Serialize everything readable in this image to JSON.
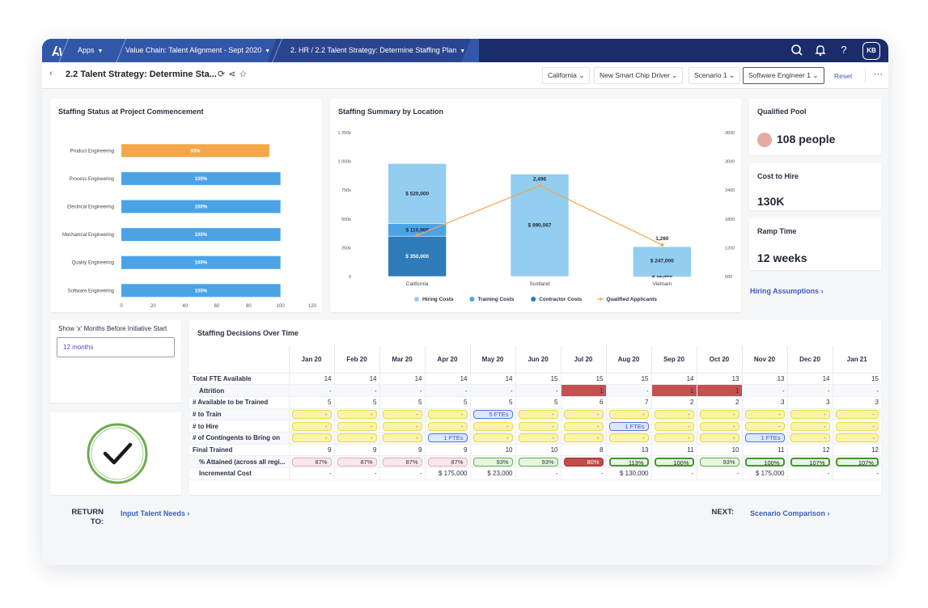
{
  "nav": {
    "apps": "Apps",
    "breadcrumb1": "Value Chain: Talent Alignment - Sept 2020",
    "breadcrumb2": "2. HR / 2.2 Talent Strategy: Determine Staffing Plan",
    "avatar": "KB"
  },
  "header": {
    "title": "2.2 Talent Strategy: Determine Sta...",
    "filters": [
      "California",
      "New Smart Chip Driver",
      "Scenario 1",
      "Software Engineer 1"
    ],
    "reset": "Reset"
  },
  "status_chart": {
    "title": "Staffing Status at Project Commencement",
    "chart_data": {
      "type": "bar",
      "orientation": "horizontal",
      "categories": [
        "Product Engineering",
        "Process Engineering",
        "Electrical Engineering",
        "Mechanical Engineering",
        "Quality Engineering",
        "Software Engineering"
      ],
      "values": [
        93,
        100,
        100,
        100,
        100,
        100
      ],
      "value_labels": [
        "93%",
        "100%",
        "100%",
        "100%",
        "100%",
        "100%"
      ],
      "bar_colors": [
        "#f4a74a",
        "#4ba3e6",
        "#4ba3e6",
        "#4ba3e6",
        "#4ba3e6",
        "#4ba3e6"
      ],
      "xlim": [
        0,
        120
      ],
      "xticks": [
        "0",
        "20",
        "40",
        "60",
        "80",
        "100",
        "120"
      ]
    }
  },
  "summary_chart": {
    "title": "Staffing Summary by Location",
    "chart_data": {
      "type": "bar",
      "stacked": true,
      "categories": [
        "California",
        "Scotland",
        "Vietnam"
      ],
      "series": [
        {
          "name": "Hiring Costs",
          "color": "#93cdef",
          "values": [
            520000,
            890067,
            247000
          ],
          "labels": [
            "$ 520,000",
            "$ 890,067",
            "$ 247,000"
          ]
        },
        {
          "name": "Training Costs",
          "color": "#4ba3e6",
          "values": [
            110900,
            0,
            12500
          ],
          "labels": [
            "$ 110,900",
            "",
            "$ 12,500"
          ]
        },
        {
          "name": "Contractor Costs",
          "color": "#2d7bb8",
          "values": [
            350000,
            0,
            0
          ],
          "labels": [
            "$ 350,000",
            "",
            ""
          ]
        },
        {
          "name": "Qualified Applicants",
          "type": "line",
          "color": "#f4a74a",
          "axis": "right",
          "values": [
            1460,
            2496,
            1260
          ],
          "labels": [
            "",
            "2,496",
            "1,260"
          ]
        }
      ],
      "ylim": [
        0,
        1250000
      ],
      "y_ticks": [
        "0",
        "250k",
        "500k",
        "750k",
        "1 000k",
        "1 250k"
      ],
      "y2lim": [
        600,
        3600
      ],
      "y2_ticks": [
        "600",
        "1200",
        "1800",
        "2400",
        "3000",
        "3600"
      ]
    }
  },
  "kpis": {
    "pool_title": "Qualified Pool",
    "pool_value": "108 people",
    "cost_title": "Cost to Hire",
    "cost_value": "130K",
    "ramp_title": "Ramp Time",
    "ramp_value": "12 weeks",
    "assumptions_link": "Hiring Assumptions"
  },
  "months_panel": {
    "label": "Show 'x' Months Before Initiative Start",
    "value": "12 months"
  },
  "decisions": {
    "title": "Staffing Decisions Over Time",
    "months": [
      "Jan 20",
      "Feb 20",
      "Mar 20",
      "Apr 20",
      "May 20",
      "Jun 20",
      "Jul 20",
      "Aug 20",
      "Sep 20",
      "Oct 20",
      "Nov 20",
      "Dec 20",
      "Jan 21"
    ],
    "rows": [
      {
        "label": "Total FTE Available",
        "kind": "num",
        "values": [
          "14",
          "14",
          "14",
          "14",
          "14",
          "15",
          "15",
          "15",
          "14",
          "13",
          "13",
          "14",
          "15"
        ]
      },
      {
        "label": "Attrition",
        "kind": "attr",
        "indent": true,
        "values": [
          "-",
          "-",
          "-",
          "-",
          "-",
          "-",
          "1",
          "-",
          "1",
          "1",
          "-",
          "-",
          "-"
        ]
      },
      {
        "label": "# Available to be Trained",
        "kind": "num",
        "values": [
          "5",
          "5",
          "5",
          "5",
          "5",
          "5",
          "6",
          "7",
          "2",
          "2",
          "3",
          "3",
          "3"
        ]
      },
      {
        "label": "# to Train",
        "kind": "pill",
        "values": [
          "-",
          "-",
          "-",
          "-",
          "5 FTEs",
          "-",
          "-",
          "-",
          "-",
          "-",
          "-",
          "-",
          "-"
        ]
      },
      {
        "label": "# to Hire",
        "kind": "pill",
        "values": [
          "-",
          "-",
          "-",
          "-",
          "-",
          "-",
          "-",
          "1 FTEs",
          "-",
          "-",
          "-",
          "-",
          "-"
        ]
      },
      {
        "label": "# of Contingents to Bring on",
        "kind": "pill",
        "values": [
          "-",
          "-",
          "-",
          "1 FTEs",
          "-",
          "-",
          "-",
          "-",
          "-",
          "-",
          "1 FTEs",
          "-",
          "-"
        ]
      },
      {
        "label": "Final Trained",
        "kind": "num",
        "values": [
          "9",
          "9",
          "9",
          "9",
          "10",
          "10",
          "8",
          "13",
          "11",
          "10",
          "11",
          "12",
          "12"
        ]
      },
      {
        "label": "% Attained (across all regi...",
        "kind": "pct",
        "indent": true,
        "values": [
          "87%",
          "87%",
          "87%",
          "87%",
          "93%",
          "93%",
          "80%",
          "113%",
          "100%",
          "93%",
          "100%",
          "107%",
          "107%"
        ]
      },
      {
        "label": "Incremental Cost",
        "kind": "num",
        "indent": true,
        "values": [
          "-",
          "-",
          "-",
          "$ 175,000",
          "$ 23,000",
          "-",
          "-",
          "$ 130,000",
          "-",
          "-",
          "$ 175,000",
          "-",
          "-"
        ]
      }
    ]
  },
  "footer": {
    "return_label": "RETURN TO:",
    "return_link": "Input Talent Needs",
    "next_label": "NEXT:",
    "next_link": "Scenario Comparison"
  }
}
